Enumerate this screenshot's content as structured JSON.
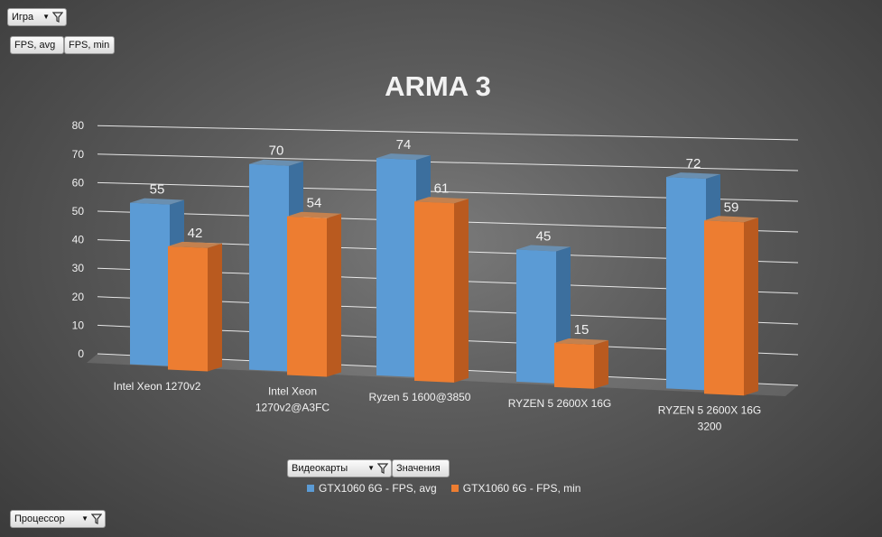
{
  "filters": {
    "game": {
      "label": "Игра"
    },
    "values_tabs": [
      "FPS, avg",
      "FPS, min"
    ],
    "video_cards": {
      "label": "Видеокарты"
    },
    "values_button": {
      "label": "Значения"
    },
    "processor": {
      "label": "Процессор"
    }
  },
  "colors": {
    "series_avg": "#5b9bd5",
    "series_min": "#ed7d31",
    "text": "#f2f2f2"
  },
  "chart_data": {
    "type": "bar",
    "title": "ARMA 3",
    "categories": [
      "Intel Xeon 1270v2",
      "Intel Xeon 1270v2@A3FC",
      "Ryzen 5 1600@3850",
      "RYZEN 5 2600X 16G",
      "RYZEN 5 2600X 16G 3200"
    ],
    "category_lines": [
      [
        "Intel Xeon 1270v2"
      ],
      [
        "Intel Xeon",
        "1270v2@A3FC"
      ],
      [
        "Ryzen 5 1600@3850"
      ],
      [
        "RYZEN 5 2600X 16G"
      ],
      [
        "RYZEN 5 2600X 16G",
        "3200"
      ]
    ],
    "series": [
      {
        "name": "GTX1060 6G - FPS, avg",
        "values": [
          55,
          70,
          74,
          45,
          72
        ]
      },
      {
        "name": "GTX1060 6G - FPS, min",
        "values": [
          42,
          54,
          61,
          15,
          59
        ]
      }
    ],
    "ylim": [
      0,
      80
    ],
    "yticks": [
      0,
      10,
      20,
      30,
      40,
      50,
      60,
      70,
      80
    ],
    "grid": true,
    "legend": "bottom"
  }
}
